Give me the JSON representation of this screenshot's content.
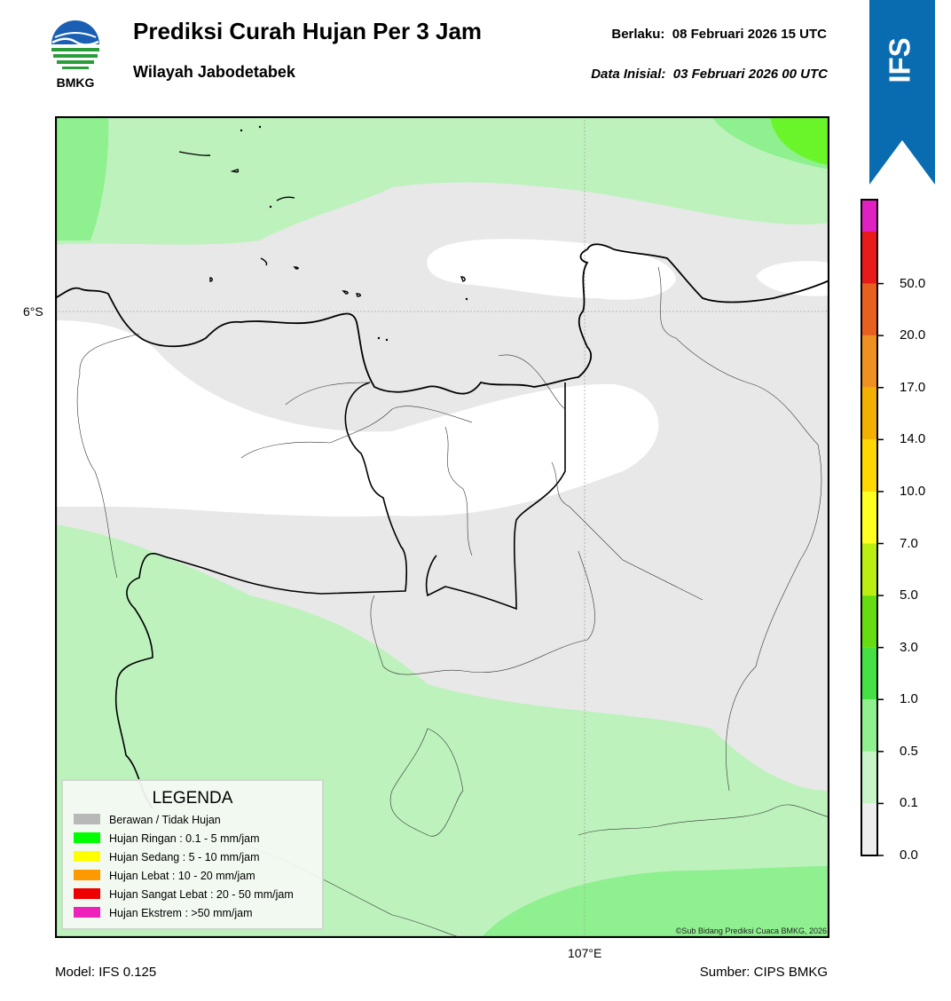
{
  "header": {
    "logo_text": "BMKG",
    "title": "Prediksi Curah Hujan Per 3 Jam",
    "subtitle": "Wilayah Jabodetabek",
    "valid_label": "Berlaku:",
    "valid_value": "08 Februari 2026 15 UTC",
    "init_label": "Data Inisial:",
    "init_value": "03 Februari 2026 00 UTC",
    "model_badge": "IFS"
  },
  "map": {
    "lat_label": "6°S",
    "lon_label": "107°E",
    "credit": "©Sub Bidang Prediksi Cuaca BMKG, 2026"
  },
  "legend": {
    "title": "LEGENDA",
    "items": [
      {
        "label": "Berawan / Tidak Hujan",
        "color": "#b8b8b8"
      },
      {
        "label": "Hujan Ringan : 0.1 - 5 mm/jam",
        "color": "#00ff00"
      },
      {
        "label": "Hujan Sedang : 5 - 10 mm/jam",
        "color": "#ffff00"
      },
      {
        "label": "Hujan Lebat : 10 - 20 mm/jam",
        "color": "#ff9900"
      },
      {
        "label": "Hujan Sangat Lebat : 20 - 50 mm/jam",
        "color": "#ee0000"
      },
      {
        "label": "Hujan Ekstrem : >50 mm/jam",
        "color": "#ee22bb"
      }
    ]
  },
  "colorbar": {
    "ticks": [
      "0.0",
      "0.1",
      "0.5",
      "1.0",
      "3.0",
      "5.0",
      "7.0",
      "10.0",
      "14.0",
      "17.0",
      "20.0",
      "50.0"
    ],
    "colors": [
      "#eeeeee",
      "#c8f5c8",
      "#8ef08e",
      "#44e044",
      "#66dd11",
      "#bbee11",
      "#ffff22",
      "#ffd800",
      "#f4b000",
      "#f09020",
      "#e86020",
      "#e81a1a",
      "#e020c0"
    ]
  },
  "footer": {
    "model": "Model: IFS 0.125",
    "source": "Sumber: CIPS BMKG"
  }
}
